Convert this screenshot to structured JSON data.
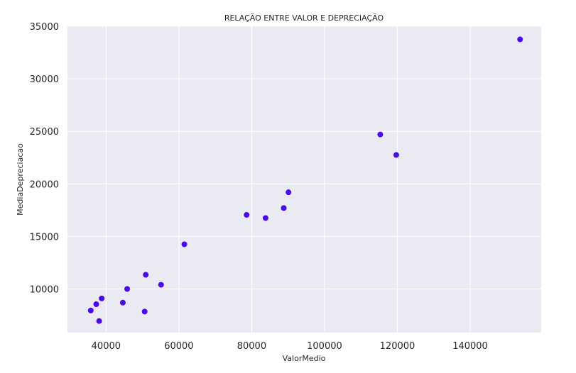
{
  "chart_data": {
    "type": "scatter",
    "title": "RELAÇÃO ENTRE VALOR E DEPRECIAÇÃO",
    "xlabel": "ValorMedio",
    "ylabel": "MediaDepreciacao",
    "xlim": [
      29400,
      159500
    ],
    "ylim": [
      5850,
      35000
    ],
    "xticks": [
      40000,
      60000,
      80000,
      100000,
      120000,
      140000
    ],
    "yticks": [
      10000,
      15000,
      20000,
      25000,
      30000,
      35000
    ],
    "grid": true,
    "colors": {
      "background": "#eaeaf2",
      "grid": "#ffffff",
      "point": "#4b0ae6"
    },
    "points": [
      {
        "x": 35800,
        "y": 7950
      },
      {
        "x": 37300,
        "y": 8550
      },
      {
        "x": 38100,
        "y": 6950
      },
      {
        "x": 38800,
        "y": 9100
      },
      {
        "x": 44600,
        "y": 8700
      },
      {
        "x": 45800,
        "y": 10000
      },
      {
        "x": 50600,
        "y": 7850
      },
      {
        "x": 50900,
        "y": 11350
      },
      {
        "x": 55100,
        "y": 10400
      },
      {
        "x": 61500,
        "y": 14250
      },
      {
        "x": 78600,
        "y": 17050
      },
      {
        "x": 83800,
        "y": 16750
      },
      {
        "x": 88800,
        "y": 17700
      },
      {
        "x": 90100,
        "y": 19200
      },
      {
        "x": 115300,
        "y": 24700
      },
      {
        "x": 119700,
        "y": 22750
      },
      {
        "x": 153700,
        "y": 33750
      }
    ]
  }
}
